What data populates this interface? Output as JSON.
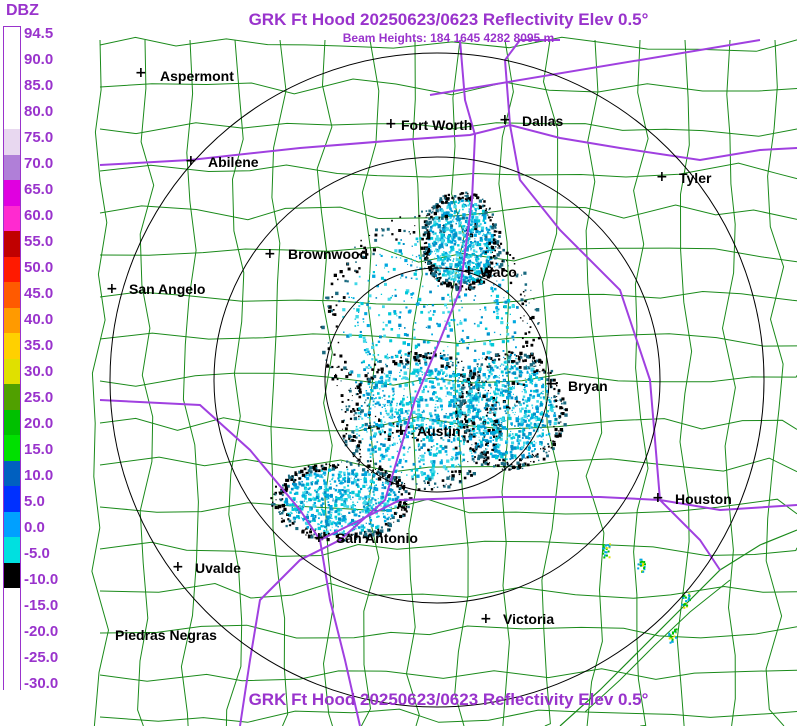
{
  "header": {
    "title": "GRK Ft Hood 20250623/0623 Reflectivity Elev 0.5°",
    "subtitle": "Beam Heights: 184 1645 4282 8095 m",
    "footer_title": "GRK Ft Hood 20250623/0623 Reflectivity Elev 0.5°"
  },
  "scale": {
    "unit": "DBZ",
    "ticks": [
      "94.5",
      "90.0",
      "85.0",
      "80.0",
      "75.0",
      "70.0",
      "65.0",
      "60.0",
      "55.0",
      "50.0",
      "45.0",
      "40.0",
      "35.0",
      "30.0",
      "25.0",
      "20.0",
      "15.0",
      "10.0",
      "5.0",
      "0.0",
      "-5.0",
      "-10.0",
      "-15.0",
      "-20.0",
      "-25.0",
      "-30.0"
    ],
    "colors": [
      "#ffffff",
      "#ffffff",
      "#ffffff",
      "#ffffff",
      "#e8d8f0",
      "#b07fd8",
      "#e000e0",
      "#ff2ad0",
      "#c00000",
      "#ff1a00",
      "#ff5a00",
      "#ff9a00",
      "#ffd000",
      "#e0e000",
      "#50a000",
      "#00c000",
      "#00e000",
      "#0060c0",
      "#0030ff",
      "#00a0ff",
      "#00e0e0",
      "#000000",
      "#ffffff",
      "#ffffff",
      "#ffffff",
      "#ffffff"
    ]
  },
  "cities": [
    {
      "name": "Aspermont",
      "marker": true
    },
    {
      "name": "Fort Worth",
      "marker": true
    },
    {
      "name": "Dallas",
      "marker": true
    },
    {
      "name": "Abilene",
      "marker": true
    },
    {
      "name": "Tyler",
      "marker": true
    },
    {
      "name": "Brownwood",
      "marker": true
    },
    {
      "name": "Waco",
      "marker": true
    },
    {
      "name": "San Angelo",
      "marker": true
    },
    {
      "name": "Bryan",
      "marker": true
    },
    {
      "name": "Austin",
      "marker": true
    },
    {
      "name": "Houston",
      "marker": true
    },
    {
      "name": "San Antonio",
      "marker": true
    },
    {
      "name": "Uvalde",
      "marker": true
    },
    {
      "name": "Victoria",
      "marker": true
    },
    {
      "name": "Piedras Negras",
      "marker": false
    }
  ],
  "colors": {
    "title": "#9933cc",
    "county_lines": "#1a8a1a",
    "highways": "#a040e0",
    "range_rings": "#000000"
  }
}
